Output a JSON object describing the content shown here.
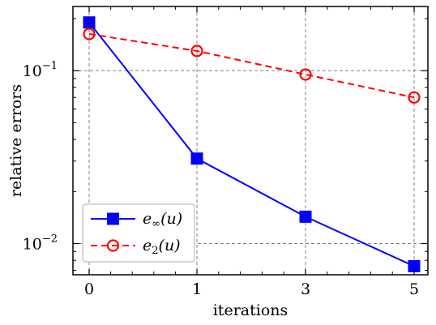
{
  "chart_data": {
    "type": "line",
    "xlabel": "iterations",
    "ylabel": "relative errors",
    "yscale": "log",
    "ylim": [
      0.0066,
      0.235
    ],
    "x_ticks": [
      "0",
      "1",
      "3",
      "5"
    ],
    "y_ticks": [
      {
        "value": 0.1,
        "label": "10",
        "exponent": "−1"
      },
      {
        "value": 0.01,
        "label": "10",
        "exponent": "−2"
      }
    ],
    "grid": true,
    "legend_position": "lower-left",
    "series": [
      {
        "name": "e∞(u)",
        "legend_base": "e",
        "legend_sub": "∞",
        "legend_arg": "(u)",
        "color": "#0000ff",
        "line_style": "solid",
        "marker": "filled-square",
        "x": [
          0,
          1,
          3,
          5
        ],
        "y": [
          0.19,
          0.031,
          0.0143,
          0.0074
        ]
      },
      {
        "name": "e2(u)",
        "legend_base": "e",
        "legend_sub": "2",
        "legend_arg": "(u)",
        "color": "#ff0000",
        "line_style": "dashed",
        "marker": "open-circle",
        "x": [
          0,
          1,
          3,
          5
        ],
        "y": [
          0.163,
          0.13,
          0.095,
          0.07
        ]
      }
    ]
  }
}
